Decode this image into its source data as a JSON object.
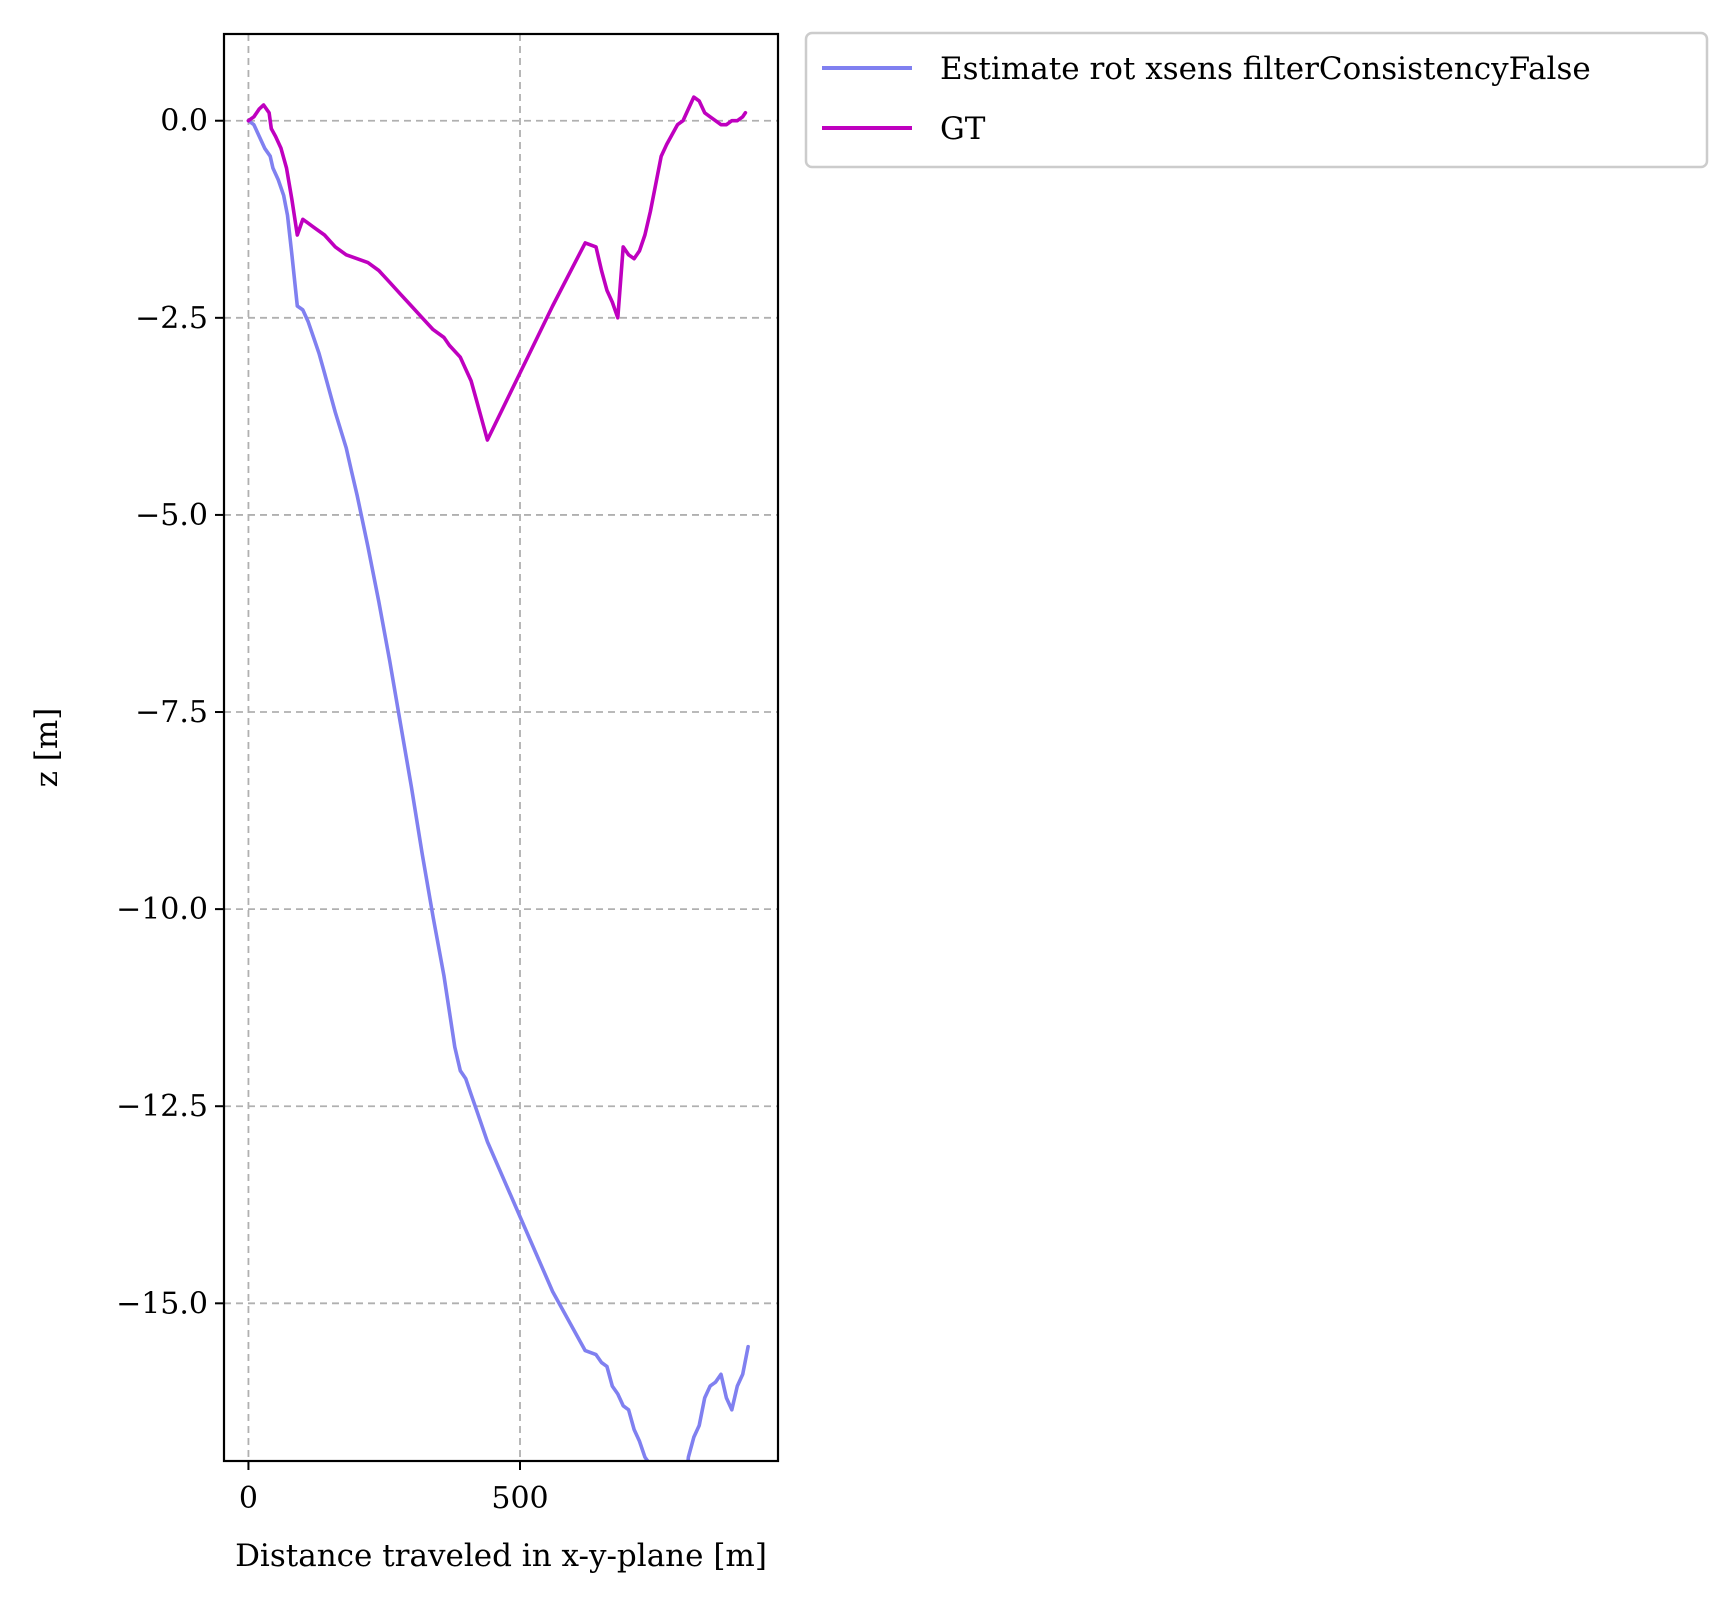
{
  "chart_data": {
    "type": "line",
    "title": "",
    "xlabel": "Distance traveled in x-y-plane [m]",
    "ylabel": "z [m]",
    "xlim": [
      -45,
      975
    ],
    "ylim": [
      -17.0,
      1.1
    ],
    "xticks": [
      0,
      500
    ],
    "xtick_labels": [
      "0",
      "500"
    ],
    "yticks": [
      0.0,
      -2.5,
      -5.0,
      -7.5,
      -10.0,
      -12.5,
      -15.0
    ],
    "ytick_labels": [
      "0.0",
      "−2.5",
      "−5.0",
      "−7.5",
      "−10.0",
      "−12.5",
      "−15.0"
    ],
    "grid": true,
    "legend_placement": "outside-top-right",
    "series": [
      {
        "name": "Estimate rot xsens filterConsistencyFalse",
        "color": "#8080f0",
        "x": [
          0,
          10,
          20,
          30,
          40,
          45,
          55,
          65,
          72,
          80,
          90,
          100,
          110,
          120,
          130,
          140,
          160,
          180,
          190,
          200,
          220,
          240,
          260,
          280,
          300,
          320,
          340,
          360,
          370,
          380,
          390,
          400,
          410,
          420,
          430,
          440,
          500,
          560,
          620,
          640,
          650,
          660,
          670,
          680,
          690,
          700,
          710,
          720,
          730,
          740,
          750,
          755,
          765,
          775,
          780,
          790,
          800,
          810,
          820,
          830,
          840,
          850,
          860,
          870,
          880,
          890,
          900,
          910,
          920
        ],
        "y": [
          0.0,
          -0.05,
          -0.2,
          -0.35,
          -0.45,
          -0.6,
          -0.75,
          -0.95,
          -1.2,
          -1.7,
          -2.35,
          -2.4,
          -2.55,
          -2.75,
          -2.95,
          -3.2,
          -3.7,
          -4.15,
          -4.45,
          -4.75,
          -5.4,
          -6.1,
          -6.85,
          -7.65,
          -8.45,
          -9.3,
          -10.1,
          -10.85,
          -11.3,
          -11.75,
          -12.05,
          -12.15,
          -12.35,
          -12.55,
          -12.75,
          -12.95,
          -13.9,
          -14.85,
          -15.6,
          -15.65,
          -15.75,
          -15.8,
          -16.05,
          -16.15,
          -16.3,
          -16.35,
          -16.6,
          -16.75,
          -16.95,
          -17.05,
          -17.1,
          -17.15,
          -17.2,
          -17.2,
          -17.3,
          -17.5,
          -17.6,
          -16.95,
          -16.7,
          -16.55,
          -16.2,
          -16.05,
          -16.0,
          -15.9,
          -16.2,
          -16.35,
          -16.05,
          -15.9,
          -15.55
        ],
        "visible_range_note": ""
      },
      {
        "name": "GT",
        "color": "#bf00bf",
        "x": [
          0,
          10,
          20,
          28,
          38,
          42,
          50,
          60,
          70,
          80,
          90,
          100,
          110,
          120,
          140,
          160,
          180,
          200,
          220,
          240,
          260,
          280,
          300,
          320,
          340,
          360,
          370,
          390,
          400,
          410,
          420,
          430,
          440,
          500,
          560,
          620,
          640,
          650,
          660,
          670,
          680,
          690,
          700,
          710,
          720,
          730,
          740,
          750,
          760,
          770,
          790,
          800,
          810,
          820,
          830,
          840,
          850,
          860,
          870,
          880,
          890,
          900,
          910,
          915
        ],
        "y": [
          0.0,
          0.05,
          0.15,
          0.2,
          0.1,
          -0.1,
          -0.2,
          -0.35,
          -0.6,
          -1.0,
          -1.45,
          -1.25,
          -1.3,
          -1.35,
          -1.45,
          -1.6,
          -1.7,
          -1.75,
          -1.8,
          -1.9,
          -2.05,
          -2.2,
          -2.35,
          -2.5,
          -2.65,
          -2.75,
          -2.85,
          -3.0,
          -3.15,
          -3.3,
          -3.55,
          -3.8,
          -4.05,
          -3.2,
          -2.35,
          -1.55,
          -1.6,
          -1.9,
          -2.15,
          -2.3,
          -2.5,
          -1.6,
          -1.7,
          -1.75,
          -1.65,
          -1.45,
          -1.15,
          -0.8,
          -0.45,
          -0.3,
          -0.05,
          0.0,
          0.15,
          0.3,
          0.25,
          0.1,
          0.05,
          0.0,
          -0.05,
          -0.05,
          0.0,
          0.0,
          0.05,
          0.1
        ]
      }
    ]
  }
}
